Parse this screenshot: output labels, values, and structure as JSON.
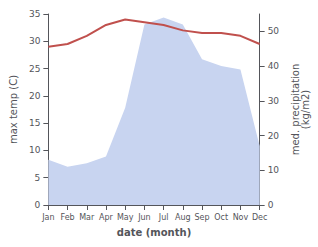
{
  "chart_data": {
    "type": "line",
    "xlabel": "date (month)",
    "ylabel": "max temp (C)",
    "y2label": "med. precipitation\n(kg/m2)",
    "categories": [
      "Jan",
      "Feb",
      "Mar",
      "Apr",
      "May",
      "Jun",
      "Jul",
      "Aug",
      "Sep",
      "Oct",
      "Nov",
      "Dec"
    ],
    "series": [
      {
        "type": "area",
        "axis": "y2",
        "color": "#c8d4f0",
        "values": [
          13,
          11,
          12,
          14,
          28,
          52,
          54,
          52,
          42,
          40,
          39,
          17
        ]
      },
      {
        "type": "line",
        "color": "#c0504d",
        "values": [
          29,
          29.5,
          31,
          33,
          34,
          33.5,
          33,
          32,
          31.5,
          31.5,
          31,
          29.5
        ]
      }
    ],
    "ylim": [
      0,
      35
    ],
    "yticks": [
      0,
      5,
      10,
      15,
      20,
      25,
      30,
      35
    ],
    "y2lim": [
      0,
      55
    ],
    "y2ticks": [
      0,
      10,
      20,
      30,
      40,
      50
    ],
    "grid": false
  }
}
